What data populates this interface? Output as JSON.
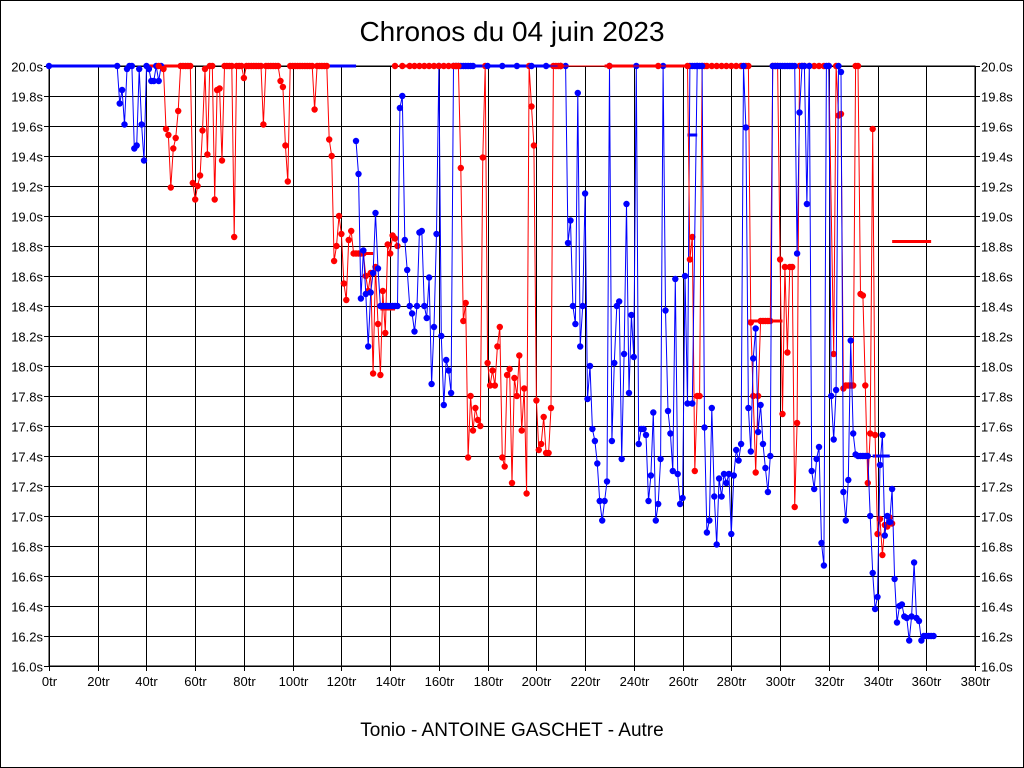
{
  "chart_data": {
    "type": "line",
    "title": "Chronos du 04 juin 2023",
    "subtitle": "Tonio - ANTOINE GASCHET - Autre",
    "xlabel": "",
    "ylabel": "",
    "xlim": [
      0,
      380
    ],
    "ylim": [
      16.0,
      20.0
    ],
    "x_ticks": [
      "0tr",
      "20tr",
      "40tr",
      "60tr",
      "80tr",
      "100tr",
      "120tr",
      "140tr",
      "160tr",
      "180tr",
      "200tr",
      "220tr",
      "240tr",
      "260tr",
      "280tr",
      "300tr",
      "320tr",
      "340tr",
      "360tr",
      "380tr"
    ],
    "y_ticks": [
      "20.0s",
      "19.8s",
      "19.6s",
      "19.4s",
      "19.2s",
      "19.0s",
      "18.8s",
      "18.6s",
      "18.4s",
      "18.2s",
      "18.0s",
      "17.8s",
      "17.6s",
      "17.4s",
      "17.2s",
      "17.0s",
      "16.8s",
      "16.6s",
      "16.4s",
      "16.2s",
      "16.0s"
    ],
    "grid": true,
    "colors": {
      "blue": "#0000ff",
      "red": "#ff0000"
    },
    "series": [
      {
        "name": "blue-1",
        "color": "#0000ff",
        "x": [
          0,
          28,
          29,
          30,
          31,
          32,
          33,
          34,
          35,
          36,
          37,
          38,
          39,
          40,
          41,
          42,
          43,
          44,
          45,
          46
        ],
        "y": [
          20.0,
          20.0,
          19.75,
          19.84,
          19.61,
          19.98,
          20.0,
          20.0,
          19.45,
          19.47,
          19.98,
          19.61,
          19.37,
          20.0,
          19.98,
          19.9,
          19.9,
          20.0,
          19.9,
          20.0
        ]
      },
      {
        "name": "red-1",
        "color": "#ff0000",
        "x": [
          45,
          47,
          48,
          49,
          50,
          51,
          52,
          53,
          54,
          55,
          56,
          57,
          58,
          59,
          60,
          61,
          62,
          63,
          64,
          65,
          66,
          67,
          68,
          69,
          70,
          71,
          72,
          73,
          74,
          75,
          76,
          77,
          78,
          79,
          80,
          81,
          82,
          83,
          84,
          85,
          86,
          87,
          88,
          89,
          90,
          91,
          92,
          93,
          94,
          95,
          96,
          97,
          98,
          99,
          100,
          101,
          102,
          103,
          104,
          105,
          106,
          107,
          108,
          109,
          110,
          111,
          112,
          113,
          114,
          115,
          116,
          117,
          118,
          119,
          120,
          121,
          122,
          123,
          124,
          125,
          126,
          127,
          128,
          129,
          130,
          131,
          132,
          133,
          134,
          135,
          136,
          137,
          138,
          139,
          140,
          141,
          142,
          143
        ],
        "y": [
          20.0,
          19.98,
          19.58,
          19.54,
          19.19,
          19.45,
          19.52,
          19.7,
          20.0,
          20.0,
          20.0,
          20.0,
          20.0,
          19.22,
          19.11,
          19.2,
          19.27,
          19.57,
          19.98,
          19.41,
          20.0,
          20.0,
          19.11,
          19.84,
          19.85,
          19.37,
          20.0,
          20.0,
          20.0,
          20.0,
          18.86,
          20.0,
          20.0,
          20.0,
          19.92,
          20.0,
          20.0,
          20.0,
          20.0,
          20.0,
          20.0,
          20.0,
          19.61,
          20.0,
          20.0,
          20.0,
          20.0,
          20.0,
          20.0,
          19.9,
          19.86,
          19.47,
          19.23,
          20.0,
          20.0,
          20.0,
          20.0,
          20.0,
          20.0,
          20.0,
          20.0,
          20.0,
          20.0,
          19.71,
          20.0,
          20.0,
          20.0,
          20.0,
          20.0,
          19.51,
          19.4,
          18.7,
          18.8,
          19.0,
          18.88,
          18.55,
          18.44,
          18.84,
          18.9,
          18.75,
          18.75,
          18.75,
          18.75,
          18.75,
          18.6,
          18.5,
          18.62,
          17.95,
          18.66,
          18.28,
          17.94,
          18.5,
          18.22,
          18.81,
          18.75,
          18.87,
          18.85,
          18.8
        ]
      },
      {
        "name": "blue-2",
        "color": "#0000ff",
        "x": [
          126,
          127,
          128,
          129,
          130,
          131,
          132,
          133,
          134,
          135,
          136,
          137,
          138,
          139,
          140,
          141,
          142,
          143,
          144,
          145,
          146,
          147,
          148,
          149,
          150,
          151,
          152,
          153,
          154,
          155,
          156,
          157,
          158,
          159,
          160,
          161,
          162,
          163,
          164,
          165,
          166,
          167,
          168,
          169,
          170,
          171,
          172,
          173
        ],
        "y": [
          19.5,
          19.28,
          18.45,
          18.77,
          18.48,
          18.13,
          18.49,
          18.62,
          19.02,
          18.65,
          18.4,
          18.4,
          18.4,
          18.4,
          18.4,
          18.4,
          18.4,
          18.4,
          19.72,
          19.8,
          18.84,
          18.64,
          18.4,
          18.35,
          18.23,
          18.4,
          18.89,
          18.9,
          18.4,
          18.32,
          18.59,
          17.88,
          18.26,
          18.88,
          20.0,
          18.2,
          17.74,
          18.04,
          17.97,
          17.82,
          20.0,
          20.0,
          20.0,
          20.0,
          20.0,
          20.0,
          20.0,
          20.0
        ]
      },
      {
        "name": "red-2",
        "color": "#ff0000",
        "x": [
          142,
          145,
          148,
          150,
          152,
          154,
          156,
          158,
          160,
          162,
          164,
          166,
          167,
          168,
          169,
          170,
          171,
          172,
          173,
          174,
          175,
          176,
          177,
          178,
          179,
          180,
          181,
          182,
          183,
          184,
          185,
          186,
          187,
          188,
          189,
          190,
          191,
          192,
          193,
          194,
          195,
          196,
          197,
          198,
          199,
          200,
          201,
          202,
          203,
          204,
          205,
          206,
          207,
          208,
          209,
          210
        ],
        "y": [
          20.0,
          20.0,
          20.0,
          20.0,
          20.0,
          20.0,
          20.0,
          20.0,
          20.0,
          20.0,
          20.0,
          20.0,
          20.0,
          20.0,
          19.32,
          18.3,
          18.42,
          17.39,
          17.8,
          17.57,
          17.72,
          17.64,
          17.6,
          19.39,
          20.0,
          18.02,
          17.87,
          17.97,
          17.87,
          18.13,
          18.26,
          17.39,
          17.33,
          17.94,
          17.98,
          17.22,
          17.92,
          17.8,
          18.07,
          17.57,
          17.85,
          17.15,
          20.0,
          19.73,
          19.47,
          17.77,
          17.44,
          17.48,
          17.66,
          17.42,
          17.42,
          17.72,
          20.0,
          20.0,
          20.0,
          20.0
        ]
      },
      {
        "name": "blue-3",
        "color": "#0000ff",
        "x": [
          174,
          180,
          186,
          192,
          198,
          204,
          210,
          212,
          213,
          214,
          215,
          216,
          217,
          218,
          219,
          220,
          221,
          222,
          223,
          224,
          225,
          226,
          227,
          228,
          229,
          230,
          231,
          232,
          233,
          234,
          235,
          236,
          237,
          238,
          239,
          240,
          241,
          242,
          243,
          244,
          245,
          246,
          247,
          248,
          249,
          250,
          251,
          252,
          253,
          254,
          255,
          256,
          257,
          258,
          259,
          260,
          261,
          262,
          263,
          264,
          265,
          266
        ],
        "y": [
          20.0,
          20.0,
          20.0,
          20.0,
          20.0,
          20.0,
          20.0,
          20.0,
          18.82,
          18.97,
          18.4,
          18.28,
          19.82,
          18.13,
          18.4,
          19.15,
          17.78,
          18.0,
          17.58,
          17.5,
          17.35,
          17.1,
          16.97,
          17.1,
          17.23,
          20.0,
          17.5,
          18.02,
          18.4,
          18.43,
          17.38,
          18.08,
          19.08,
          17.82,
          18.34,
          18.06,
          20.0,
          17.48,
          17.58,
          17.58,
          17.54,
          17.1,
          17.27,
          17.69,
          16.97,
          17.08,
          17.38,
          20.0,
          18.37,
          17.7,
          17.55,
          17.3,
          18.58,
          17.28,
          17.08,
          17.12,
          18.6,
          17.75,
          20.0,
          20.0,
          20.0,
          20.0
        ]
      },
      {
        "name": "red-3",
        "color": "#ff0000",
        "x": [
          210,
          230,
          250,
          262,
          263,
          264,
          265,
          266,
          267,
          268,
          269,
          270,
          272,
          274,
          276,
          278,
          280,
          282,
          284,
          286,
          287,
          288,
          289,
          290,
          291,
          292,
          293,
          294,
          295,
          296,
          297,
          298,
          299,
          300,
          301,
          302,
          303,
          304,
          305,
          306,
          307,
          308,
          309,
          310,
          312,
          314,
          316,
          318,
          320,
          322,
          323,
          324,
          325,
          326,
          327,
          328,
          329,
          330,
          331,
          332,
          333,
          334,
          335,
          336,
          337,
          338,
          339,
          340,
          341,
          342,
          343,
          344,
          345,
          346
        ],
        "y": [
          20.0,
          20.0,
          20.0,
          20.0,
          18.71,
          18.86,
          17.3,
          17.8,
          17.8,
          20.0,
          20.0,
          20.0,
          20.0,
          20.0,
          20.0,
          20.0,
          20.0,
          20.0,
          20.0,
          20.0,
          20.0,
          18.29,
          17.8,
          17.29,
          17.8,
          18.3,
          18.3,
          18.3,
          18.3,
          18.3,
          20.0,
          20.0,
          20.0,
          18.71,
          17.68,
          18.66,
          18.09,
          18.66,
          18.66,
          17.06,
          17.62,
          20.0,
          20.0,
          20.0,
          20.0,
          20.0,
          20.0,
          20.0,
          20.0,
          18.08,
          20.0,
          19.67,
          19.68,
          17.85,
          17.87,
          17.87,
          17.87,
          17.87,
          20.0,
          20.0,
          18.48,
          18.47,
          17.87,
          17.22,
          17.55,
          19.58,
          17.54,
          16.88,
          16.98,
          16.74,
          16.94,
          16.93,
          16.99,
          16.95
        ]
      },
      {
        "name": "blue-4",
        "color": "#0000ff",
        "x": [
          264,
          266,
          267,
          268,
          269,
          270,
          271,
          272,
          273,
          274,
          275,
          276,
          277,
          278,
          279,
          280,
          281,
          282,
          283,
          284,
          285,
          286,
          287,
          288,
          289,
          290,
          291,
          292,
          293,
          294,
          295,
          296,
          297,
          298,
          299,
          300,
          301,
          302,
          303,
          304,
          305,
          306,
          307,
          308,
          309,
          310,
          311,
          312,
          313,
          314,
          315,
          316,
          317,
          318,
          319,
          320,
          321,
          322,
          323,
          324,
          325,
          326,
          327,
          328,
          329,
          330,
          331,
          332,
          333,
          334,
          335,
          336,
          337,
          338,
          339,
          340,
          341,
          342,
          343,
          344,
          345,
          346,
          347,
          348,
          349,
          350,
          351,
          352,
          353,
          354,
          355,
          356,
          357,
          358,
          359,
          360,
          361,
          362,
          363
        ],
        "y": [
          17.75,
          20.0,
          20.0,
          20.0,
          17.59,
          16.89,
          16.97,
          17.72,
          17.13,
          16.81,
          17.25,
          17.13,
          17.28,
          17.22,
          17.28,
          16.88,
          17.27,
          17.44,
          17.37,
          17.48,
          20.0,
          19.59,
          17.72,
          17.43,
          18.05,
          18.25,
          17.56,
          17.74,
          17.48,
          17.32,
          17.16,
          17.4,
          20.0,
          20.0,
          20.0,
          20.0,
          20.0,
          20.0,
          20.0,
          20.0,
          20.0,
          20.0,
          18.75,
          19.69,
          20.0,
          20.0,
          19.08,
          20.0,
          17.3,
          17.18,
          17.38,
          17.46,
          16.82,
          16.67,
          20.0,
          20.0,
          17.8,
          17.51,
          17.84,
          20.0,
          19.96,
          17.16,
          16.97,
          17.24,
          18.17,
          17.55,
          17.41,
          17.4,
          17.4,
          17.4,
          17.4,
          17.4,
          17.0,
          16.62,
          16.38,
          16.46,
          17.34,
          17.54,
          16.87,
          17.0,
          16.96,
          17.18,
          16.58,
          16.29,
          16.4,
          16.41,
          16.33,
          16.32,
          16.17,
          16.33,
          16.69,
          16.32,
          16.3,
          16.17,
          16.2,
          16.2,
          16.2,
          16.2,
          16.2
        ]
      }
    ],
    "segments": [
      {
        "color": "#0000ff",
        "x": [
          0,
          28
        ],
        "y": [
          20.0,
          20.0
        ]
      },
      {
        "color": "#ff0000",
        "x": [
          41,
          58
        ],
        "y": [
          20.0,
          20.0
        ]
      },
      {
        "color": "#ff0000",
        "x": [
          100,
          116
        ],
        "y": [
          20.0,
          20.0
        ]
      },
      {
        "color": "#0000ff",
        "x": [
          106,
          126
        ],
        "y": [
          20.0,
          20.0
        ]
      },
      {
        "color": "#ff0000",
        "x": [
          126,
          133
        ],
        "y": [
          18.75,
          18.75
        ]
      },
      {
        "color": "#ff0000",
        "x": [
          136,
          142
        ],
        "y": [
          18.38,
          18.38
        ]
      },
      {
        "color": "#ff0000",
        "x": [
          144,
          168
        ],
        "y": [
          20.0,
          20.0
        ]
      },
      {
        "color": "#0000ff",
        "x": [
          174,
          210
        ],
        "y": [
          20.0,
          20.0
        ]
      },
      {
        "color": "#ff0000",
        "x": [
          228,
          262
        ],
        "y": [
          20.0,
          20.0
        ]
      },
      {
        "color": "#0000ff",
        "x": [
          262,
          266
        ],
        "y": [
          19.54,
          19.54
        ]
      },
      {
        "color": "#ff0000",
        "x": [
          274,
          284
        ],
        "y": [
          20.0,
          20.0
        ]
      },
      {
        "color": "#ff0000",
        "x": [
          287,
          301
        ],
        "y": [
          18.3,
          18.3
        ]
      },
      {
        "color": "#ff0000",
        "x": [
          326,
          331
        ],
        "y": [
          17.87,
          17.87
        ]
      },
      {
        "color": "#0000ff",
        "x": [
          338,
          345
        ],
        "y": [
          17.4,
          17.4
        ]
      },
      {
        "color": "#ff0000",
        "x": [
          346,
          362
        ],
        "y": [
          18.83,
          18.83
        ]
      }
    ]
  }
}
